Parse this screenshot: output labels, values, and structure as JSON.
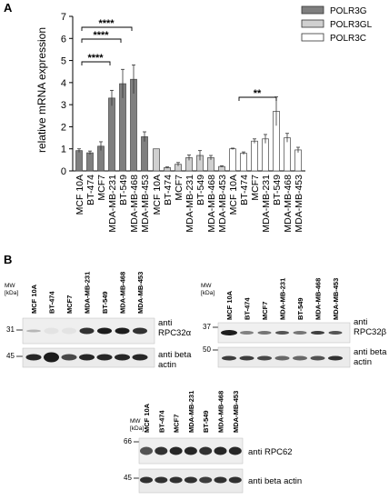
{
  "panel_a": {
    "label": "A",
    "legend": [
      "POLR3G",
      "POLR3GL",
      "POLR3C"
    ],
    "significance": [
      "****",
      "****",
      "****",
      "**"
    ]
  },
  "panel_b": {
    "label": "B",
    "blot1": {
      "lanes": [
        "MCF 10A",
        "BT-474",
        "MCF7",
        "MDA-MB-231",
        "BT-549",
        "MDA-MB-468",
        "MDA-MB-453"
      ],
      "mw_title": "MW\n[kDa]",
      "markers": [
        "31",
        "45"
      ],
      "labels": [
        "anti RPC32α",
        "anti beta actin"
      ]
    },
    "blot2": {
      "lanes": [
        "MCF 10A",
        "BT-474",
        "MCF7",
        "MDA-MB-231",
        "BT-549",
        "MDA-MB-468",
        "MDA-MB-453"
      ],
      "mw_title": "MW\n[kDa]",
      "markers": [
        "37",
        "50"
      ],
      "labels": [
        "anti RPC32β",
        "anti beta actin"
      ]
    },
    "blot3": {
      "lanes": [
        "MCF 10A",
        "BT-474",
        "MCF7",
        "MDA-MB-231",
        "BT-549",
        "MDA-MB-468",
        "MDA-MB-453"
      ],
      "mw_title": "MW\n[kDa]",
      "markers": [
        "66",
        "45"
      ],
      "labels": [
        "anti RPC62",
        "anti beta actin"
      ]
    }
  },
  "colors": {
    "POLR3G": "#7f7f7f",
    "POLR3GL": "#d0d0d0",
    "POLR3C": "#ffffff"
  },
  "chart_data": {
    "type": "bar",
    "ylabel": "relative mRNA expression",
    "ylim": [
      0,
      7
    ],
    "yticks": [
      "0",
      "1",
      "2",
      "3",
      "4",
      "5",
      "6",
      "7"
    ],
    "categories": [
      "MCF 10A",
      "BT-474",
      "MCF7",
      "MDA-MB-231",
      "BT-549",
      "MDA-MB-468",
      "MDA-MB-453"
    ],
    "series": [
      {
        "name": "POLR3G",
        "values": [
          0.92,
          0.82,
          1.12,
          3.3,
          3.95,
          4.15,
          1.55
        ],
        "errors": [
          0.08,
          0.08,
          0.2,
          0.35,
          0.65,
          0.65,
          0.22
        ]
      },
      {
        "name": "POLR3GL",
        "values": [
          1.0,
          0.15,
          0.3,
          0.6,
          0.7,
          0.6,
          0.2
        ],
        "errors": [
          0.0,
          0.03,
          0.08,
          0.12,
          0.22,
          0.1,
          0.03
        ]
      },
      {
        "name": "POLR3C",
        "values": [
          1.0,
          0.8,
          1.35,
          1.45,
          2.7,
          1.5,
          0.95
        ],
        "errors": [
          0.03,
          0.06,
          0.1,
          0.2,
          0.65,
          0.2,
          0.12
        ]
      }
    ],
    "legend_position": "top-right"
  }
}
